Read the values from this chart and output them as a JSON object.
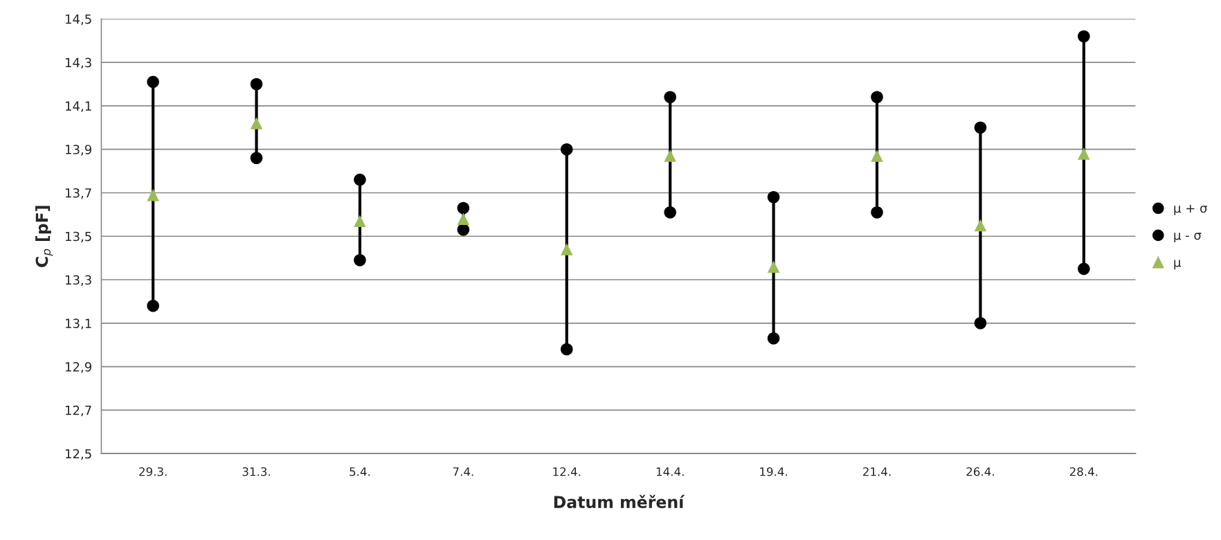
{
  "chart_data": {
    "type": "scatter",
    "xlabel": "Datum měření",
    "ylabel": "C$_{p}$ [pF]",
    "categories": [
      "29.3.",
      "31.3.",
      "5.4.",
      "7.4.",
      "12.4.",
      "14.4.",
      "19.4.",
      "21.4.",
      "26.4.",
      "28.4."
    ],
    "series": [
      {
        "name": "μ + σ",
        "color": "#000000",
        "marker": "circle",
        "values": [
          14.21,
          14.2,
          13.76,
          13.63,
          13.9,
          14.14,
          13.68,
          14.14,
          14.0,
          14.42
        ]
      },
      {
        "name": "μ - σ",
        "color": "#000000",
        "marker": "circle",
        "values": [
          13.18,
          13.86,
          13.39,
          13.53,
          12.98,
          13.61,
          13.03,
          13.61,
          13.1,
          13.35
        ]
      },
      {
        "name": "μ",
        "color": "#9bbb59",
        "marker": "triangle",
        "values": [
          13.69,
          14.02,
          13.57,
          13.58,
          13.44,
          13.87,
          13.36,
          13.87,
          13.55,
          13.88
        ]
      }
    ],
    "ylim": [
      12.5,
      14.5
    ],
    "yticks": [
      {
        "value": 12.5,
        "label": "12,5"
      },
      {
        "value": 12.7,
        "label": "12,7"
      },
      {
        "value": 12.9,
        "label": "12,9"
      },
      {
        "value": 13.1,
        "label": "13,1"
      },
      {
        "value": 13.3,
        "label": "13,3"
      },
      {
        "value": 13.5,
        "label": "13,5"
      },
      {
        "value": 13.7,
        "label": "13,7"
      },
      {
        "value": 13.9,
        "label": "13,9"
      },
      {
        "value": 14.1,
        "label": "14,1"
      },
      {
        "value": 14.3,
        "label": "14,3"
      },
      {
        "value": 14.5,
        "label": "14,5"
      }
    ],
    "grid": "y",
    "legend": "right"
  }
}
